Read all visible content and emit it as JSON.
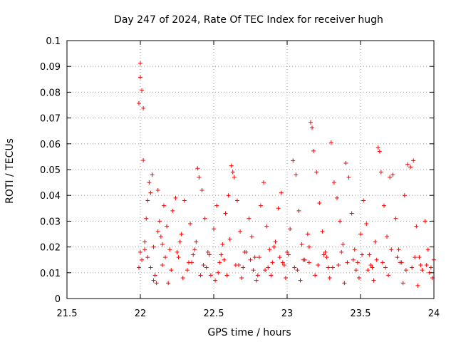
{
  "chart_data": {
    "type": "scatter",
    "title": "Day 247 of 2024, Rate Of TEC Index for receiver hugh",
    "xlabel": "GPS time / hours",
    "ylabel": "ROTI / TECUs",
    "xlim": [
      21.5,
      24
    ],
    "ylim": [
      0,
      0.1
    ],
    "xticks": [
      21.5,
      22,
      22.5,
      23,
      23.5,
      24
    ],
    "xtick_labels": [
      "21.5",
      "22",
      "22.5",
      "23",
      "23.5",
      "24"
    ],
    "yticks": [
      0,
      0.01,
      0.02,
      0.03,
      0.04,
      0.05,
      0.06,
      0.07,
      0.08,
      0.09,
      0.1
    ],
    "ytick_labels": [
      "0",
      "0.01",
      "0.02",
      "0.03",
      "0.04",
      "0.05",
      "0.06",
      "0.07",
      "0.08",
      "0.09",
      "0.1"
    ],
    "grid": true,
    "marker": "+",
    "color": "#ff0000",
    "series": [
      {
        "name": "ROTI",
        "x": [
          21.99,
          22.0,
          22.0,
          22.01,
          22.02,
          21.99,
          22.0,
          22.01,
          22.02,
          22.03,
          22.04,
          22.05,
          22.06,
          22.07,
          22.08,
          22.09,
          22.1,
          22.11,
          22.12,
          22.13,
          22.14,
          22.15,
          22.16,
          22.18,
          22.2,
          22.22,
          22.24,
          22.26,
          22.28,
          22.3,
          22.32,
          22.34,
          22.36,
          22.38,
          22.39,
          22.4,
          22.42,
          22.44,
          22.46,
          22.48,
          22.5,
          22.52,
          22.54,
          22.56,
          22.58,
          22.6,
          22.62,
          22.63,
          22.64,
          22.66,
          22.68,
          22.7,
          22.72,
          22.74,
          22.76,
          22.78,
          22.8,
          22.82,
          22.84,
          22.86,
          22.88,
          22.9,
          22.92,
          22.94,
          22.96,
          22.98,
          23.0,
          23.02,
          23.04,
          23.06,
          23.08,
          23.1,
          23.12,
          23.14,
          23.16,
          23.17,
          23.18,
          23.2,
          23.22,
          23.24,
          23.26,
          23.28,
          23.3,
          23.32,
          23.34,
          23.36,
          23.38,
          23.4,
          23.42,
          23.44,
          23.46,
          23.48,
          23.5,
          23.52,
          23.54,
          23.56,
          23.58,
          23.6,
          23.62,
          23.63,
          23.64,
          23.66,
          23.68,
          23.7,
          23.72,
          23.74,
          23.76,
          23.78,
          23.8,
          23.82,
          23.84,
          23.86,
          23.88,
          23.9,
          23.92,
          23.94,
          23.96,
          23.98,
          24.0,
          22.03,
          22.07,
          22.12,
          22.17,
          22.21,
          22.27,
          22.33,
          22.37,
          22.43,
          22.47,
          22.53,
          22.57,
          22.61,
          22.67,
          22.71,
          22.77,
          22.81,
          22.87,
          22.91,
          22.97,
          23.01,
          23.07,
          23.11,
          23.15,
          23.21,
          23.27,
          23.31,
          23.37,
          23.41,
          23.47,
          23.51,
          23.57,
          23.61,
          23.67,
          23.71,
          23.77,
          23.81,
          23.87,
          23.91,
          23.97,
          22.05,
          22.15,
          22.25,
          22.35,
          22.45,
          22.55,
          22.65,
          22.75,
          22.85,
          22.95,
          23.05,
          23.15,
          23.25,
          23.35,
          23.45,
          23.55,
          23.65,
          23.75,
          23.85,
          23.95,
          22.09,
          22.19,
          22.29,
          22.41,
          22.51,
          22.59,
          22.69,
          22.79,
          22.89,
          22.99,
          23.09,
          23.19,
          23.29,
          23.39,
          23.49,
          23.59,
          23.69,
          23.79,
          23.89,
          23.99
        ],
        "y": [
          0.0757,
          0.0858,
          0.0912,
          0.0807,
          0.0738,
          0.012,
          0.018,
          0.015,
          0.0536,
          0.022,
          0.031,
          0.038,
          0.045,
          0.041,
          0.048,
          0.02,
          0.009,
          0.006,
          0.042,
          0.03,
          0.024,
          0.013,
          0.036,
          0.028,
          0.019,
          0.034,
          0.039,
          0.016,
          0.025,
          0.038,
          0.011,
          0.029,
          0.017,
          0.022,
          0.0505,
          0.047,
          0.042,
          0.031,
          0.018,
          0.009,
          0.027,
          0.036,
          0.014,
          0.021,
          0.033,
          0.04,
          0.0515,
          0.049,
          0.047,
          0.038,
          0.026,
          0.012,
          0.018,
          0.031,
          0.024,
          0.016,
          0.009,
          0.036,
          0.045,
          0.028,
          0.019,
          0.014,
          0.022,
          0.035,
          0.041,
          0.013,
          0.018,
          0.027,
          0.0535,
          0.048,
          0.034,
          0.021,
          0.015,
          0.025,
          0.0683,
          0.0662,
          0.0572,
          0.049,
          0.037,
          0.026,
          0.018,
          0.012,
          0.0605,
          0.045,
          0.039,
          0.03,
          0.021,
          0.0525,
          0.047,
          0.033,
          0.019,
          0.014,
          0.025,
          0.038,
          0.029,
          0.017,
          0.012,
          0.022,
          0.0585,
          0.057,
          0.049,
          0.036,
          0.024,
          0.047,
          0.048,
          0.031,
          0.019,
          0.014,
          0.04,
          0.052,
          0.051,
          0.0535,
          0.028,
          0.016,
          0.011,
          0.03,
          0.019,
          0.012,
          0.015,
          0.019,
          0.012,
          0.026,
          0.016,
          0.011,
          0.022,
          0.014,
          0.019,
          0.013,
          0.017,
          0.01,
          0.015,
          0.023,
          0.013,
          0.018,
          0.011,
          0.016,
          0.012,
          0.02,
          0.014,
          0.017,
          0.011,
          0.015,
          0.02,
          0.013,
          0.016,
          0.012,
          0.018,
          0.014,
          0.011,
          0.017,
          0.013,
          0.015,
          0.012,
          0.019,
          0.014,
          0.011,
          0.016,
          0.013,
          0.01,
          0.016,
          0.021,
          0.018,
          0.014,
          0.012,
          0.017,
          0.013,
          0.015,
          0.011,
          0.016,
          0.012,
          0.014,
          0.017,
          0.013,
          0.015,
          0.011,
          0.014,
          0.016,
          0.012,
          0.013,
          0.007,
          0.006,
          0.008,
          0.009,
          0.007,
          0.009,
          0.008,
          0.007,
          0.009,
          0.008,
          0.007,
          0.009,
          0.008,
          0.006,
          0.008,
          0.007,
          0.009,
          0.006,
          0.005,
          0.008
        ]
      }
    ]
  }
}
